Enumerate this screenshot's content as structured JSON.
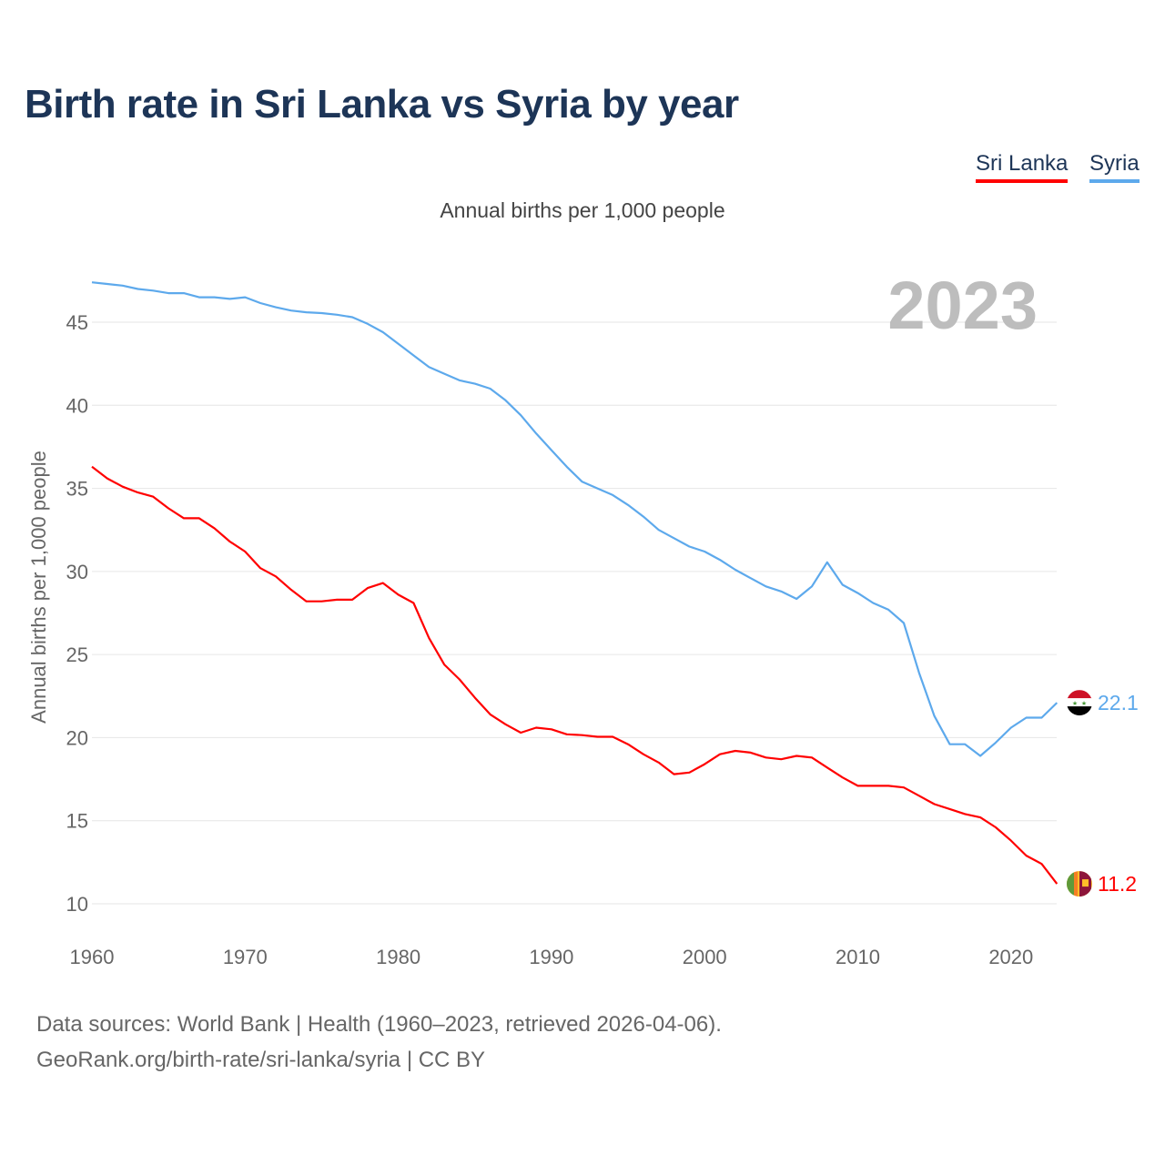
{
  "title": "Birth rate in Sri Lanka vs Syria by year",
  "legend": {
    "sri_lanka": "Sri Lanka",
    "syria": "Syria"
  },
  "subtitle": "Annual births per 1,000 people",
  "footer": {
    "line1": "Data sources: World Bank | Health (1960–2023, retrieved 2026-04-06).",
    "line2": "GeoRank.org/birth-rate/sri-lanka/syria | CC BY"
  },
  "chart_data": {
    "type": "line",
    "title": "Birth rate in Sri Lanka vs Syria by year",
    "ylabel": "Annual births per 1,000 people",
    "xlabel": "",
    "watermark_year": "2023",
    "xlim": [
      1960,
      2023
    ],
    "ylim": [
      10,
      47.5
    ],
    "xticks": [
      1960,
      1970,
      1980,
      1990,
      2000,
      2010,
      2020
    ],
    "yticks": [
      10,
      15,
      20,
      25,
      30,
      35,
      40,
      45
    ],
    "grid": true,
    "legend_position": "top-right",
    "x_start": 1960,
    "series": [
      {
        "name": "Sri Lanka",
        "color": "#ff0000",
        "end_label": "11.2",
        "values": [
          36.3,
          35.6,
          35.1,
          34.75,
          34.5,
          33.8,
          33.2,
          33.2,
          32.6,
          31.8,
          31.2,
          30.2,
          29.7,
          28.9,
          28.2,
          28.2,
          28.3,
          28.3,
          29.0,
          29.3,
          28.6,
          28.1,
          26.0,
          24.4,
          23.5,
          22.4,
          21.4,
          20.8,
          20.3,
          20.6,
          20.5,
          20.2,
          20.15,
          20.05,
          20.05,
          19.6,
          19.0,
          18.5,
          17.8,
          17.9,
          18.4,
          19.0,
          19.2,
          19.1,
          18.8,
          18.7,
          18.9,
          18.8,
          18.2,
          17.6,
          17.1,
          17.1,
          17.1,
          17.0,
          16.5,
          16.0,
          15.7,
          15.4,
          15.2,
          14.6,
          13.8,
          12.9,
          12.4,
          11.2
        ]
      },
      {
        "name": "Syria",
        "color": "#5da9ec",
        "end_label": "22.1",
        "values": [
          47.4,
          47.3,
          47.2,
          47.0,
          46.9,
          46.75,
          46.75,
          46.5,
          46.5,
          46.4,
          46.5,
          46.15,
          45.9,
          45.7,
          45.6,
          45.55,
          45.45,
          45.3,
          44.9,
          44.4,
          43.7,
          43.0,
          42.3,
          41.9,
          41.5,
          41.3,
          41.0,
          40.3,
          39.4,
          38.3,
          37.3,
          36.3,
          35.4,
          35.0,
          34.6,
          34.0,
          33.3,
          32.5,
          32.0,
          31.5,
          31.2,
          30.7,
          30.1,
          29.6,
          29.1,
          28.8,
          28.35,
          29.1,
          30.55,
          29.2,
          28.7,
          28.1,
          27.7,
          26.9,
          23.9,
          21.3,
          19.6,
          19.6,
          18.9,
          19.7,
          20.6,
          21.2,
          21.2,
          22.1
        ]
      }
    ]
  }
}
